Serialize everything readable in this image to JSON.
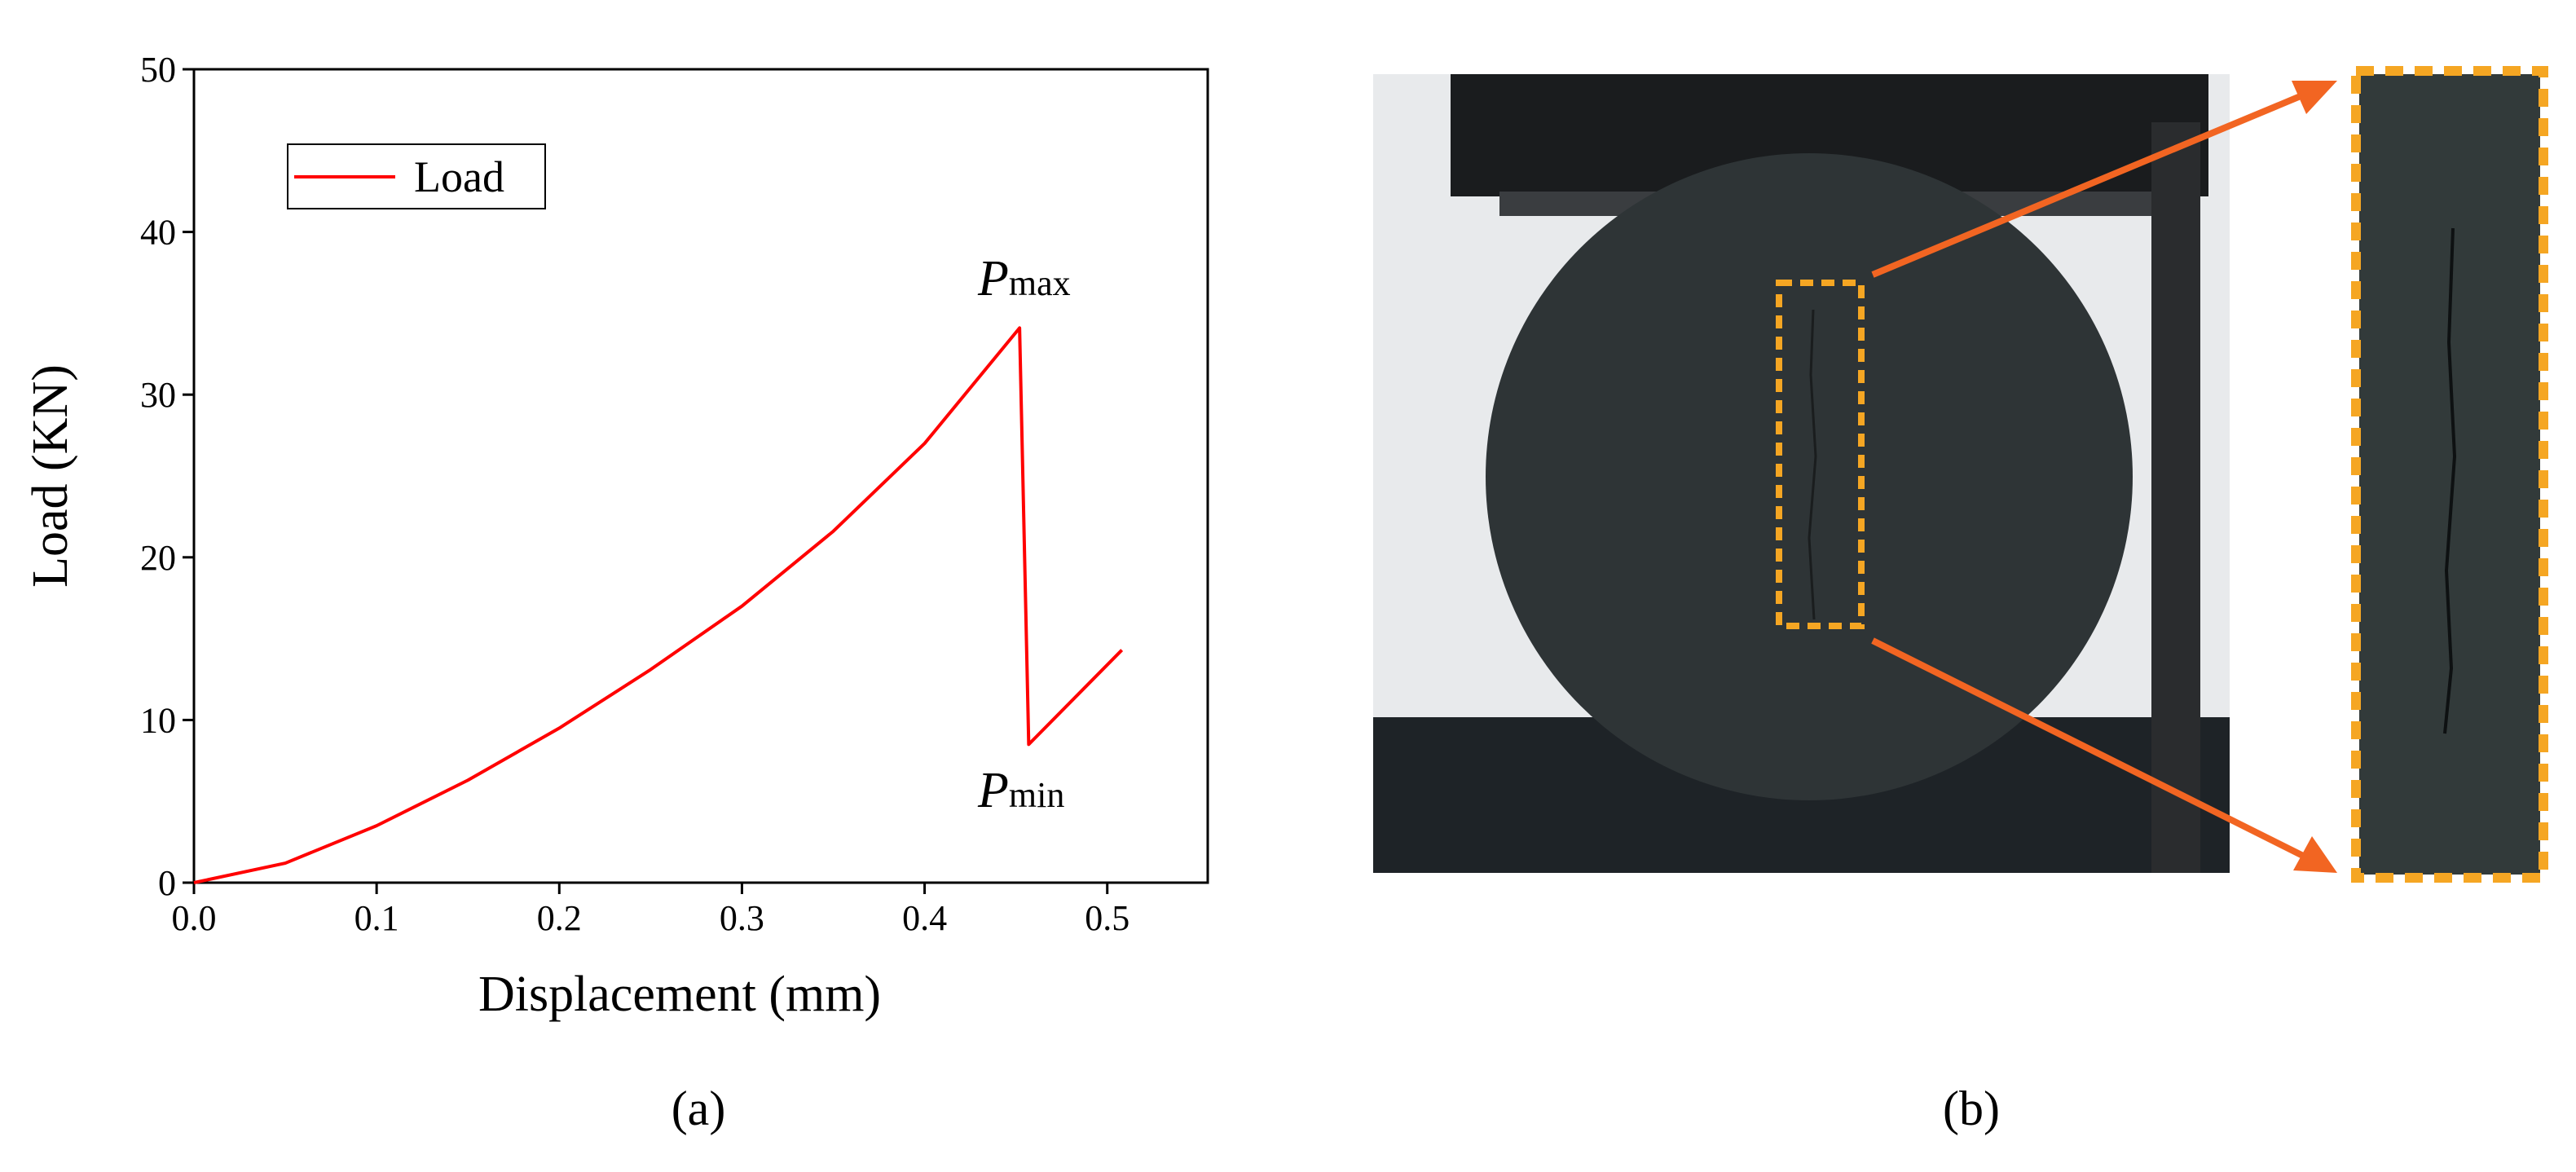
{
  "chart_data": {
    "type": "line",
    "x": [
      0,
      0.05,
      0.1,
      0.15,
      0.2,
      0.25,
      0.3,
      0.35,
      0.4,
      0.452,
      0.457,
      0.508
    ],
    "series": [
      {
        "name": "Load",
        "color": "#ff0000",
        "values": [
          0,
          1.2,
          3.5,
          6.3,
          9.5,
          13.1,
          17.0,
          21.6,
          27.0,
          34.1,
          8.5,
          14.3
        ]
      }
    ],
    "xlabel": "Displacement (mm)",
    "ylabel": "Load (KN)",
    "xlim": [
      0,
      0.555
    ],
    "ylim": [
      0,
      50
    ],
    "xticks": [
      {
        "value": 0,
        "label": "0.0"
      },
      0.1,
      0.2,
      0.3,
      0.4,
      0.5
    ],
    "yticks": [
      0,
      10,
      20,
      30,
      40,
      50
    ],
    "legend": "upper left",
    "annotations": [
      {
        "text": "P",
        "sub": "max"
      },
      {
        "text": "P",
        "sub": "min"
      }
    ],
    "caption": "(a)"
  },
  "photo": {
    "caption": "(b)"
  }
}
